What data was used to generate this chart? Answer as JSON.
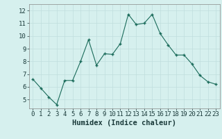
{
  "x": [
    0,
    1,
    2,
    3,
    4,
    5,
    6,
    7,
    8,
    9,
    10,
    11,
    12,
    13,
    14,
    15,
    16,
    17,
    18,
    19,
    20,
    21,
    22,
    23
  ],
  "y": [
    6.6,
    5.9,
    5.2,
    4.6,
    6.5,
    6.5,
    8.0,
    9.7,
    7.7,
    8.6,
    8.55,
    9.4,
    11.7,
    10.9,
    11.0,
    11.7,
    10.2,
    9.3,
    8.5,
    8.5,
    7.8,
    6.9,
    6.4,
    6.2
  ],
  "line_color": "#1a6b5a",
  "marker": "+",
  "marker_color": "#1a6b5a",
  "bg_color": "#d6f0ee",
  "grid_color": "#c0dedd",
  "xlabel": "Humidex (Indice chaleur)",
  "xlim": [
    -0.5,
    23.5
  ],
  "ylim": [
    4.3,
    12.5
  ],
  "yticks": [
    5,
    6,
    7,
    8,
    9,
    10,
    11,
    12
  ],
  "xticks": [
    0,
    1,
    2,
    3,
    4,
    5,
    6,
    7,
    8,
    9,
    10,
    11,
    12,
    13,
    14,
    15,
    16,
    17,
    18,
    19,
    20,
    21,
    22,
    23
  ],
  "tick_fontsize": 6.5,
  "label_fontsize": 7.5
}
